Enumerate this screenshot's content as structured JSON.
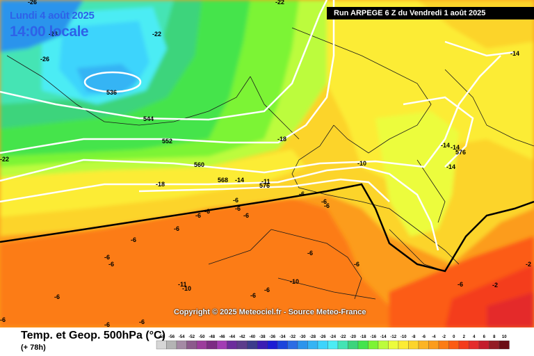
{
  "header": {
    "date": "Lundi 4 août 2025",
    "time": "14:00 locale",
    "run": "Run ARPEGE 6 Z du Vendredi 1 août 2025"
  },
  "copyright": "Copyright © 2025 Meteociel.fr - Source Meteo-France",
  "footer": {
    "title": "Temp. et Geop. 500hPa (°C)",
    "subtitle": "(+ 78h)"
  },
  "legend": {
    "ticks": [
      "-58",
      "-56",
      "-54",
      "-52",
      "-50",
      "-48",
      "-46",
      "-44",
      "-42",
      "-40",
      "-38",
      "-36",
      "-34",
      "-32",
      "-30",
      "-28",
      "-26",
      "-24",
      "-22",
      "-20",
      "-18",
      "-16",
      "-14",
      "-12",
      "-10",
      "-8",
      "-6",
      "-4",
      "-2",
      "0",
      "2",
      "4",
      "6",
      "8",
      "10"
    ],
    "colors": [
      "#d6d6d6",
      "#b4b4b4",
      "#a48aa4",
      "#8c5a8c",
      "#9c3c9c",
      "#7c2c84",
      "#a23cb4",
      "#6c2c9c",
      "#5c3c8c",
      "#3c3c8c",
      "#3c1cb4",
      "#1c1cd4",
      "#1c44dc",
      "#2c6ce4",
      "#2c94ec",
      "#34b4f4",
      "#3cd4fc",
      "#4cecf4",
      "#44e4b4",
      "#3cd47c",
      "#44e44c",
      "#7cf434",
      "#bcfc3c",
      "#ecfc3c",
      "#fcec34",
      "#fcd42c",
      "#fcb424",
      "#fc9c1c",
      "#fc7c14",
      "#fc5c14",
      "#f43c1c",
      "#e42c2c",
      "#c41c2c",
      "#941c24",
      "#6c0c14"
    ]
  },
  "labels": {
    "geopotential": [
      "536",
      "544",
      "552",
      "560",
      "568",
      "576"
    ],
    "temperature": [
      "-26",
      "-26",
      "-22",
      "-22",
      "-18",
      "-18",
      "-14",
      "-14",
      "-14",
      "-14",
      "-14",
      "-10",
      "-11",
      "-10",
      "-11",
      "-6",
      "-6",
      "-6",
      "-6",
      "-6",
      "-6",
      "-6",
      "-6",
      "-6",
      "-6",
      "-6",
      "-6",
      "-6",
      "-6",
      "-6",
      "-6",
      "-6",
      "-6",
      "-2",
      "-2",
      "-10"
    ]
  }
}
